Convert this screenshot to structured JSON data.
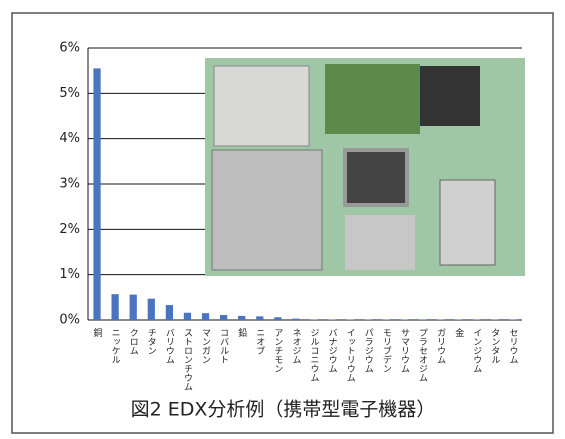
{
  "chart_data": {
    "type": "bar",
    "caption": "図2 EDX分析例（携帯型電子機器）",
    "categories": [
      "銅",
      "ニッケル",
      "クロム",
      "チタン",
      "バリウム",
      "ストロンチウム",
      "マンガン",
      "コバルト",
      "鉛",
      "ニオブ",
      "アンチモン",
      "ネオジム",
      "ジルコニウム",
      "バナジウム",
      "イットリウム",
      "パラジウム",
      "モリブデン",
      "サマリウム",
      "プラセオジム",
      "ガリウム",
      "金",
      "インジウム",
      "タンタル",
      "セリウム"
    ],
    "values": [
      5.55,
      0.57,
      0.56,
      0.47,
      0.33,
      0.16,
      0.15,
      0.11,
      0.09,
      0.08,
      0.06,
      0.03,
      0.01,
      0.01,
      0.01,
      0.01,
      0.01,
      0.01,
      0.01,
      0.01,
      0.01,
      0.01,
      0.01,
      0.01
    ],
    "color": "#4a74c0",
    "ylim": [
      0,
      6
    ],
    "yticks": [
      {
        "value": 0,
        "label": "0%"
      },
      {
        "value": 1,
        "label": "1%"
      },
      {
        "value": 2,
        "label": "2%"
      },
      {
        "value": 3,
        "label": "3%"
      },
      {
        "value": 4,
        "label": "4%"
      },
      {
        "value": 5,
        "label": "5%"
      },
      {
        "value": 6,
        "label": "6%"
      }
    ],
    "grid": true
  }
}
